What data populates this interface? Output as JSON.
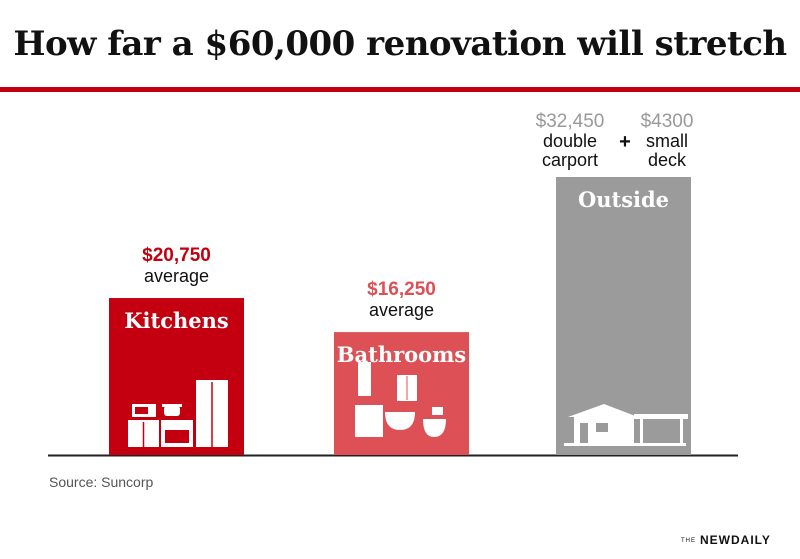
{
  "title": "How far a $60,000 renovation will stretch",
  "source": "Source: Suncorp",
  "logo": {
    "prefix": "THE",
    "name": "NEWDAILY"
  },
  "colors": {
    "rule": "#c40010",
    "kitchens": "#c40010",
    "bathrooms": "#dd5156",
    "outside": "#9b9b9b",
    "label_gray": "#999999",
    "text": "#111111"
  },
  "chart_data": {
    "type": "bar",
    "categories": [
      "Kitchens",
      "Bathrooms",
      "Outside"
    ],
    "values": [
      20750,
      16250,
      36750
    ],
    "ylim": [
      0,
      40000
    ],
    "grid": false,
    "legend": "none",
    "icons": [
      "kitchen-appliances-icon",
      "bathroom-fixtures-icon",
      "house-carport-icon"
    ],
    "annotations": [
      {
        "category": "Kitchens",
        "value_label": "$20,750",
        "sub": "average"
      },
      {
        "category": "Bathrooms",
        "value_label": "$16,250",
        "sub": "average"
      },
      {
        "category": "Outside",
        "parts": [
          {
            "value": 32450,
            "value_label": "$32,450",
            "lines": [
              "double",
              "carport"
            ]
          },
          {
            "value": 4300,
            "value_label": "$4300",
            "lines": [
              "small",
              "deck"
            ]
          }
        ],
        "plus": "+"
      }
    ]
  }
}
